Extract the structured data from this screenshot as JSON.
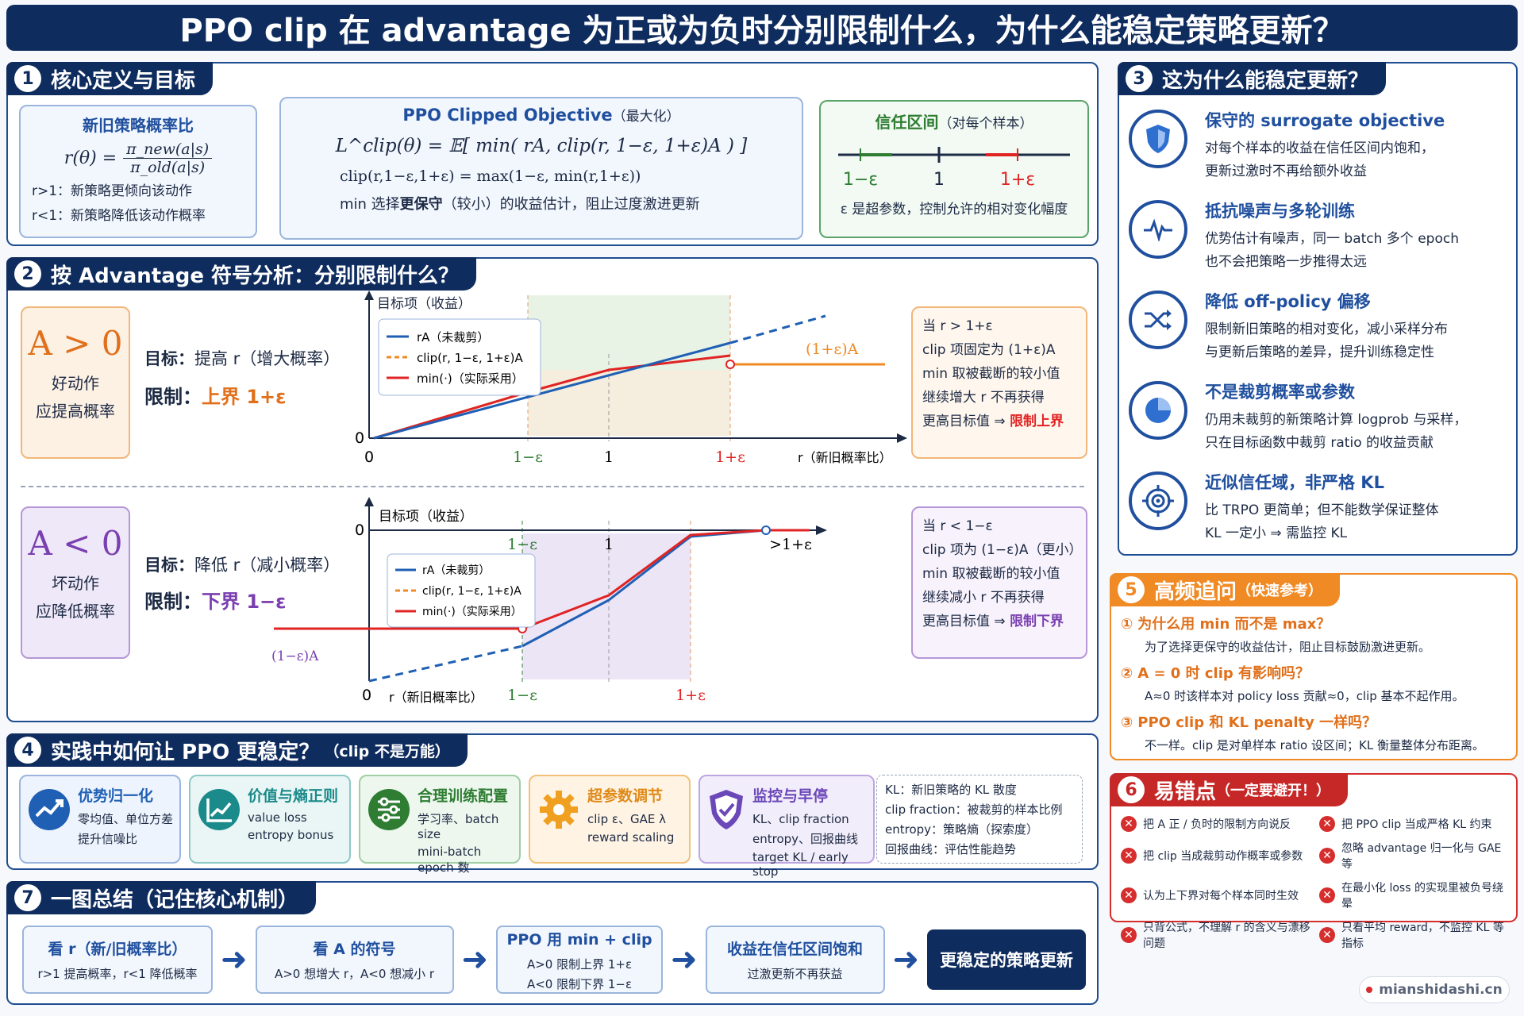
{
  "title": "PPO clip 在 advantage 为正或为负时分别限制什么，为什么能稳定策略更新？",
  "s1": {
    "num": "1",
    "title": "核心定义与目标",
    "ratio": {
      "title": "新旧策略概率比",
      "lhs": "r(θ) =",
      "num": "π_new(a|s)",
      "den": "π_old(a|s)",
      "l1": "r>1：新策略更倾向该动作",
      "l2": "r<1：新策略降低该动作概率"
    },
    "obj": {
      "title": "PPO Clipped Objective",
      "title_note": "（最大化）",
      "f1": "L^clip(θ) = 𝔼[ min( rA,  clip(r, 1−ε, 1+ε)A ) ]",
      "f2": "clip(r,1−ε,1+ε) = max(1−ε, min(r,1+ε))",
      "f3a": "min 选择",
      "f3b": "更保守",
      "f3c": "（较小）的收益估计，阻止过度激进更新"
    },
    "trust": {
      "title": "信任区间",
      "note": "（对每个样本）",
      "lo": "1−ε",
      "mid": "1",
      "hi": "1+ε",
      "desc": "ε 是超参数，控制允许的相对变化幅度"
    }
  },
  "s2": {
    "num": "2",
    "title": "按 Advantage 符号分析：分别限制什么？",
    "pos": {
      "big": "A > 0",
      "l1": "好动作",
      "l2": "应提高概率",
      "goal_label": "目标：",
      "goal": "提高 r（增大概率）",
      "limit_label": "限制：",
      "limit": "上界 1+ε",
      "ylabel": "目标项（收益）",
      "xlabel": "r（新旧概率比）",
      "zero_y": "0",
      "zero_x": "0",
      "tick_lo": "1−ε",
      "tick_mid": "1",
      "tick_hi": "1+ε",
      "plateau": "(1+ε)A",
      "legend": [
        "rA（未裁剪）",
        "clip(r, 1−ε, 1+ε)A",
        "min(·)（实际采用）"
      ],
      "note": [
        "当 r > 1+ε",
        "clip 项固定为 (1+ε)A",
        "min 取被截断的较小值",
        "继续增大 r 不再获得",
        "更高目标值 ⇒ "
      ],
      "note_hl": "限制上界"
    },
    "neg": {
      "big": "A < 0",
      "l1": "坏动作",
      "l2": "应降低概率",
      "goal_label": "目标：",
      "goal": "降低 r（减小概率）",
      "limit_label": "限制：",
      "limit": "下界 1−ε",
      "ylabel": "目标项（收益）",
      "xlabel": "r（新旧概率比）",
      "zero_y": "0",
      "zero_x": "0",
      "tick_lo": "1−ε",
      "tick_mid": "1",
      "tick_hi": "1+ε",
      "tick_right": ">1+ε",
      "floor": "(1−ε)A",
      "legend": [
        "rA（未裁剪）",
        "clip(r, 1−ε, 1+ε)A",
        "min(·)（实际采用）"
      ],
      "note": [
        "当 r < 1−ε",
        "clip 项为 (1−ε)A（更小）",
        "min 取被截断的较小值",
        "继续减小 r 不再获得",
        "更高目标值 ⇒ "
      ],
      "note_hl": "限制下界"
    }
  },
  "s3": {
    "num": "3",
    "title": "这为什么能稳定更新？",
    "items": [
      {
        "icon": "shield-icon",
        "title": "保守的 surrogate objective",
        "d1": "对每个样本的收益在信任区间内饱和，",
        "d2": "更新过激时不再给额外收益"
      },
      {
        "icon": "pulse-icon",
        "title": "抵抗噪声与多轮训练",
        "d1": "优势估计有噪声，同一 batch 多个 epoch",
        "d2": "也不会把策略一步推得太远"
      },
      {
        "icon": "shuffle-icon",
        "title": "降低 off-policy 偏移",
        "d1": "限制新旧策略的相对变化，减小采样分布",
        "d2": "与更新后策略的差异，提升训练稳定性"
      },
      {
        "icon": "pie-icon",
        "title": "不是裁剪概率或参数",
        "d1": "仍用未裁剪的新策略计算 logprob 与采样，",
        "d2": "只在目标函数中裁剪 ratio 的收益贡献"
      },
      {
        "icon": "target-icon",
        "title": "近似信任域，非严格 KL",
        "d1": "比 TRPO 更简单；但不能数学保证整体",
        "d2": "KL 一定小 ⇒ 需监控 KL"
      }
    ]
  },
  "s4": {
    "num": "4",
    "title": "实践中如何让 PPO 更稳定？",
    "note": "（clip 不是万能）",
    "cards": [
      {
        "icon": "trend-icon",
        "title": "优势归一化",
        "l1": "零均值、单位方差",
        "l2": "提升信噪比",
        "l3": ""
      },
      {
        "icon": "chart-icon",
        "title": "价值与熵正则",
        "l1": "value loss",
        "l2": "entropy bonus",
        "l3": ""
      },
      {
        "icon": "sliders-icon",
        "title": "合理训练配置",
        "l1": "学习率、batch size",
        "l2": "mini-batch epoch 数",
        "l3": ""
      },
      {
        "icon": "gear-icon",
        "title": "超参数调节",
        "l1": "clip ε、GAE λ",
        "l2": "reward scaling",
        "l3": ""
      },
      {
        "icon": "shield-check-icon",
        "title": "监控与早停",
        "l1": "KL、clip fraction",
        "l2": "entropy、回报曲线",
        "l3": "target KL / early stop"
      }
    ],
    "glossary": [
      "KL：新旧策略的 KL 散度",
      "clip fraction：被裁剪的样本比例",
      "entropy：策略熵（探索度）",
      "回报曲线：评估性能趋势"
    ]
  },
  "s5": {
    "num": "5",
    "title": "高频追问",
    "note": "（快速参考）",
    "qa": [
      {
        "n": "①",
        "q": "为什么用 min 而不是 max？",
        "a": "为了选择更保守的收益估计，阻止目标鼓励激进更新。"
      },
      {
        "n": "②",
        "q": "A = 0 时 clip 有影响吗？",
        "a": "A≈0 时该样本对 policy loss 贡献≈0，clip 基本不起作用。"
      },
      {
        "n": "③",
        "q": "PPO clip 和 KL penalty 一样吗？",
        "a": "不一样。clip 是对单样本 ratio 设区间；KL 衡量整体分布距离。"
      }
    ]
  },
  "s6": {
    "num": "6",
    "title": "易错点",
    "note": "（一定要避开！）",
    "items": [
      "把 A 正 / 负时的限制方向说反",
      "把 PPO clip 当成严格 KL 约束",
      "把 clip 当成裁剪动作概率或参数",
      "忽略 advantage 归一化与 GAE 等",
      "认为上下界对每个样本同时生效",
      "在最小化 loss 的实现里被负号绕晕",
      "只背公式，不理解 r 的含义与漂移问题",
      "只看平均 reward，不监控 KL 等指标"
    ]
  },
  "s7": {
    "num": "7",
    "title": "一图总结（记住核心机制）",
    "steps": [
      {
        "t": "看 r（新/旧概率比）",
        "d1": "r>1 提高概率，r<1 降低概率",
        "d2": ""
      },
      {
        "t": "看 A 的符号",
        "d1": "A>0 想增大 r，A<0 想减小 r",
        "d2": ""
      },
      {
        "t": "PPO 用 min + clip",
        "d1": "A>0 限制上界 1+ε",
        "d2": "A<0 限制下界 1−ε"
      },
      {
        "t": "收益在信任区间饱和",
        "d1": "过激更新不再获益",
        "d2": ""
      }
    ],
    "final": "更稳定的策略更新"
  },
  "footer": "mianshidashi.cn",
  "colors": {
    "navy": "#0f2c5e",
    "blue": "#1f5fb4",
    "orange": "#f08a24",
    "red": "#e02424",
    "purple": "#7a3fb0",
    "green": "#2e7d32"
  }
}
